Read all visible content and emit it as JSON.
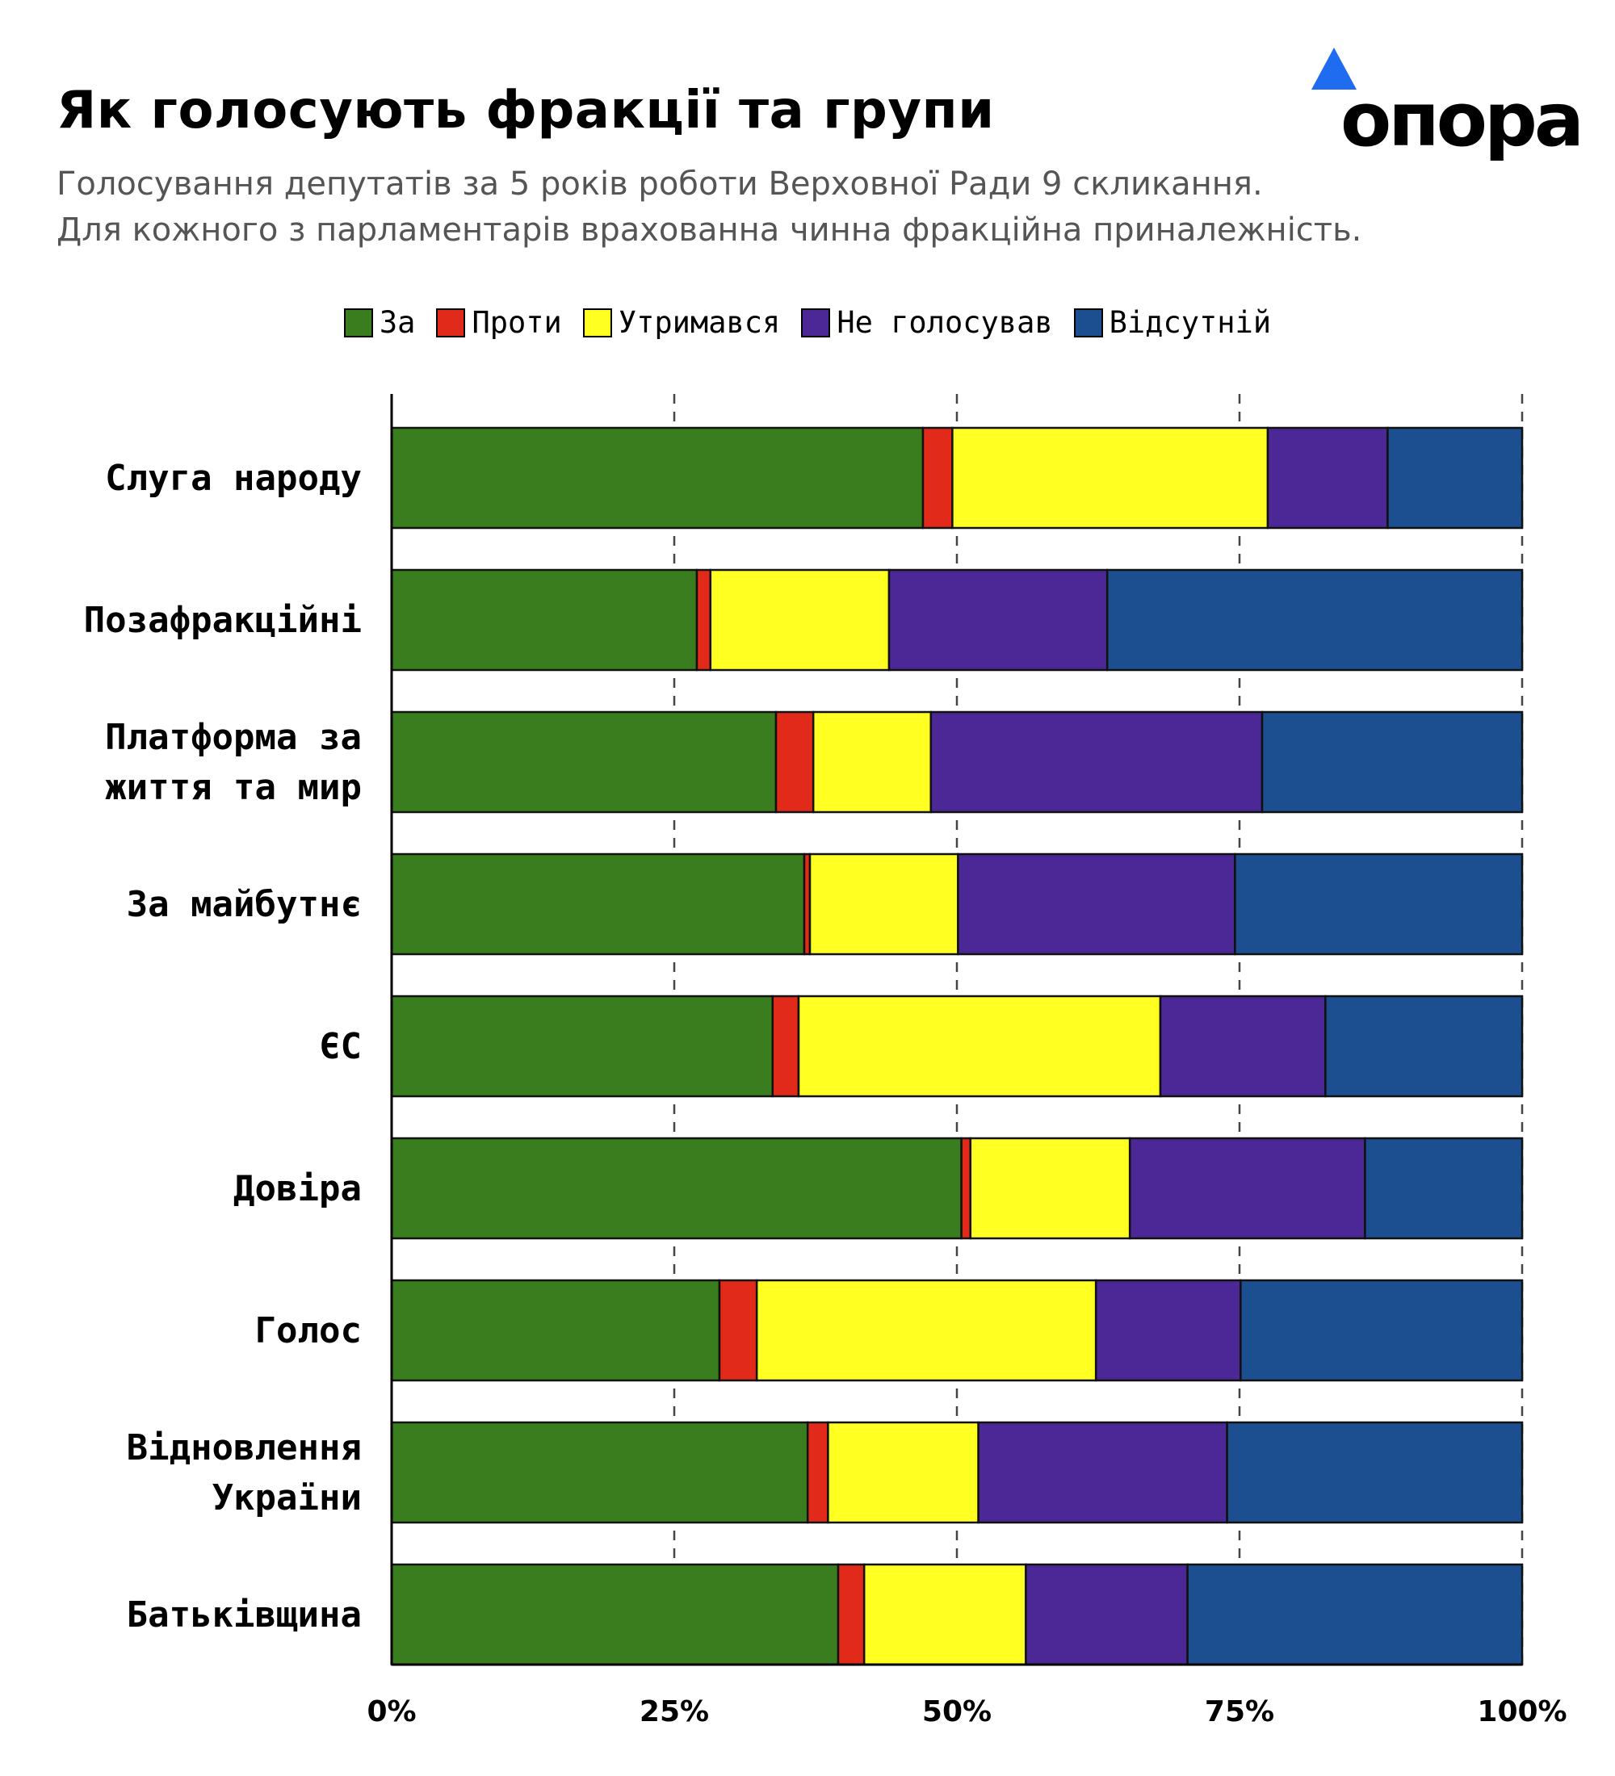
{
  "title": "Як голосують фракції та групи",
  "subtitle_line1": "Голосування депутатів за 5 років роботи Верховної Ради 9 скликання.",
  "subtitle_line2": "Для кожного з парламентарів врахованна чинна фракційна приналежність.",
  "logo_text": "опора",
  "colors": {
    "za": "#3a7d1e",
    "proty": "#e22a1a",
    "utrymavsia": "#ffff22",
    "ne_holosuvav": "#4b2896",
    "vidsutnii": "#1b4f8f",
    "logo_accent": "#1f6cf0"
  },
  "legend": [
    "За",
    "Проти",
    "Утримався",
    "Не голосував",
    "Відсутній"
  ],
  "chart_data": {
    "type": "bar",
    "orientation": "horizontal",
    "stacked": true,
    "categories": [
      [
        "Слуга народу"
      ],
      [
        "Позафракційні"
      ],
      [
        "Платформа за",
        "життя та мир"
      ],
      [
        "За майбутнє"
      ],
      [
        "ЄС"
      ],
      [
        "Довіра"
      ],
      [
        "Голос"
      ],
      [
        "Відновлення",
        "України"
      ],
      [
        "Батьківщина"
      ]
    ],
    "series": [
      {
        "name": "За",
        "values": [
          47.0,
          27.0,
          34.0,
          36.5,
          33.7,
          50.4,
          29.0,
          36.8,
          39.5
        ]
      },
      {
        "name": "Проти",
        "values": [
          2.6,
          1.2,
          3.3,
          0.5,
          2.3,
          0.8,
          3.3,
          1.8,
          2.3
        ]
      },
      {
        "name": "Утримався",
        "values": [
          27.9,
          15.8,
          10.4,
          13.1,
          32.0,
          14.1,
          30.0,
          13.3,
          14.3
        ]
      },
      {
        "name": "Не голосував",
        "values": [
          10.6,
          19.3,
          29.3,
          24.5,
          14.6,
          20.8,
          12.8,
          22.0,
          14.3
        ]
      },
      {
        "name": "Відсутній",
        "values": [
          11.9,
          36.7,
          23.0,
          25.4,
          17.4,
          13.9,
          24.9,
          26.1,
          29.6
        ]
      }
    ],
    "xlim": [
      0,
      100
    ],
    "xticks": [
      "0%",
      "25%",
      "50%",
      "75%",
      "100%"
    ],
    "grid": "vertical dashed"
  }
}
